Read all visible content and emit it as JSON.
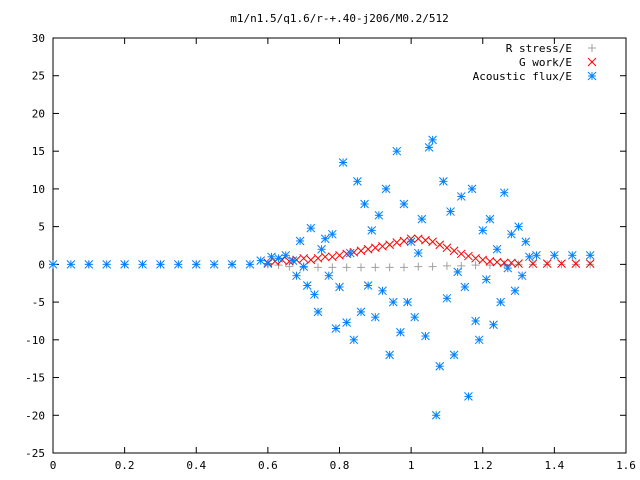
{
  "chart_data": {
    "type": "scatter",
    "title": "m1/n1.5/q1.6/r-+.40-j206/M0.2/512",
    "xlabel": "",
    "ylabel": "",
    "xlim": [
      0,
      1.6
    ],
    "ylim": [
      -25,
      30
    ],
    "x_ticks": [
      "0",
      "0.2",
      "0.4",
      "0.6",
      "0.8",
      "1",
      "1.2",
      "1.4",
      "1.6"
    ],
    "y_ticks": [
      "30",
      "25",
      "20",
      "15",
      "10",
      "5",
      "0",
      "-5",
      "-10",
      "-15",
      "-20",
      "-25"
    ],
    "grid": false,
    "legend_position": "top-right",
    "series": [
      {
        "name": "R stress/E",
        "marker": "+",
        "color": "#a0a0a0",
        "points": [
          [
            0.0,
            0
          ],
          [
            0.1,
            0
          ],
          [
            0.2,
            0
          ],
          [
            0.3,
            0
          ],
          [
            0.4,
            0
          ],
          [
            0.5,
            0
          ],
          [
            0.6,
            0
          ],
          [
            0.63,
            -0.1
          ],
          [
            0.66,
            -0.3
          ],
          [
            0.7,
            -0.4
          ],
          [
            0.74,
            -0.4
          ],
          [
            0.78,
            -0.4
          ],
          [
            0.82,
            -0.4
          ],
          [
            0.86,
            -0.4
          ],
          [
            0.9,
            -0.4
          ],
          [
            0.94,
            -0.4
          ],
          [
            0.98,
            -0.4
          ],
          [
            1.02,
            -0.3
          ],
          [
            1.06,
            -0.3
          ],
          [
            1.1,
            -0.2
          ],
          [
            1.14,
            -0.2
          ],
          [
            1.18,
            -0.1
          ],
          [
            1.22,
            -0.1
          ],
          [
            1.26,
            0
          ],
          [
            1.3,
            0
          ],
          [
            1.34,
            0
          ],
          [
            1.38,
            0
          ],
          [
            1.42,
            0
          ],
          [
            1.46,
            0
          ],
          [
            1.5,
            0
          ]
        ]
      },
      {
        "name": "G work/E",
        "marker": "x",
        "color": "#ff0000",
        "points": [
          [
            0.6,
            0.2
          ],
          [
            0.62,
            0.4
          ],
          [
            0.64,
            0.6
          ],
          [
            0.66,
            0.4
          ],
          [
            0.68,
            0.6
          ],
          [
            0.7,
            0.8
          ],
          [
            0.72,
            0.6
          ],
          [
            0.74,
            0.8
          ],
          [
            0.76,
            1.0
          ],
          [
            0.78,
            1.0
          ],
          [
            0.8,
            1.2
          ],
          [
            0.82,
            1.4
          ],
          [
            0.84,
            1.6
          ],
          [
            0.86,
            1.8
          ],
          [
            0.88,
            2.0
          ],
          [
            0.9,
            2.2
          ],
          [
            0.92,
            2.4
          ],
          [
            0.94,
            2.6
          ],
          [
            0.96,
            2.9
          ],
          [
            0.98,
            3.1
          ],
          [
            1.0,
            3.4
          ],
          [
            1.02,
            3.4
          ],
          [
            1.04,
            3.2
          ],
          [
            1.06,
            3.0
          ],
          [
            1.08,
            2.6
          ],
          [
            1.1,
            2.2
          ],
          [
            1.12,
            1.8
          ],
          [
            1.14,
            1.4
          ],
          [
            1.16,
            1.1
          ],
          [
            1.18,
            0.8
          ],
          [
            1.2,
            0.6
          ],
          [
            1.22,
            0.4
          ],
          [
            1.24,
            0.3
          ],
          [
            1.26,
            0.2
          ],
          [
            1.28,
            0.2
          ],
          [
            1.3,
            0.1
          ],
          [
            1.34,
            0.1
          ],
          [
            1.38,
            0.1
          ],
          [
            1.42,
            0.1
          ],
          [
            1.46,
            0.1
          ],
          [
            1.5,
            0.1
          ]
        ]
      },
      {
        "name": "Acoustic flux/E",
        "marker": "*",
        "color": "#0080ff",
        "points": [
          [
            0.0,
            0
          ],
          [
            0.05,
            0
          ],
          [
            0.1,
            0
          ],
          [
            0.15,
            0
          ],
          [
            0.2,
            0
          ],
          [
            0.25,
            0
          ],
          [
            0.3,
            0
          ],
          [
            0.35,
            0
          ],
          [
            0.4,
            0
          ],
          [
            0.45,
            0
          ],
          [
            0.5,
            0
          ],
          [
            0.55,
            0
          ],
          [
            0.6,
            0.1
          ],
          [
            0.58,
            0.5
          ],
          [
            0.61,
            1.0
          ],
          [
            0.63,
            0.8
          ],
          [
            0.65,
            1.2
          ],
          [
            0.67,
            0.5
          ],
          [
            0.68,
            -1.5
          ],
          [
            0.69,
            3.1
          ],
          [
            0.7,
            -0.3
          ],
          [
            0.71,
            -2.8
          ],
          [
            0.72,
            4.8
          ],
          [
            0.73,
            -4.0
          ],
          [
            0.74,
            -6.3
          ],
          [
            0.75,
            2.0
          ],
          [
            0.76,
            3.4
          ],
          [
            0.77,
            -1.5
          ],
          [
            0.78,
            4.0
          ],
          [
            0.79,
            -8.5
          ],
          [
            0.8,
            -3.0
          ],
          [
            0.81,
            13.5
          ],
          [
            0.82,
            -7.7
          ],
          [
            0.83,
            1.5
          ],
          [
            0.84,
            -10.0
          ],
          [
            0.85,
            11.0
          ],
          [
            0.86,
            -6.3
          ],
          [
            0.87,
            8.0
          ],
          [
            0.88,
            -2.8
          ],
          [
            0.89,
            4.5
          ],
          [
            0.9,
            -7.0
          ],
          [
            0.91,
            6.5
          ],
          [
            0.92,
            -3.5
          ],
          [
            0.93,
            10.0
          ],
          [
            0.94,
            -12.0
          ],
          [
            0.95,
            -5.0
          ],
          [
            0.96,
            15.0
          ],
          [
            0.97,
            -9.0
          ],
          [
            0.98,
            8.0
          ],
          [
            0.99,
            -5.0
          ],
          [
            1.0,
            3.0
          ],
          [
            1.01,
            -7.0
          ],
          [
            1.02,
            1.5
          ],
          [
            1.03,
            6.0
          ],
          [
            1.04,
            -9.5
          ],
          [
            1.05,
            15.5
          ],
          [
            1.06,
            16.5
          ],
          [
            1.07,
            -20.0
          ],
          [
            1.08,
            -13.5
          ],
          [
            1.09,
            11.0
          ],
          [
            1.1,
            -4.5
          ],
          [
            1.11,
            7.0
          ],
          [
            1.12,
            -12.0
          ],
          [
            1.13,
            -1.0
          ],
          [
            1.14,
            9.0
          ],
          [
            1.15,
            -3.0
          ],
          [
            1.16,
            -17.5
          ],
          [
            1.17,
            10.0
          ],
          [
            1.18,
            -7.5
          ],
          [
            1.19,
            -10.0
          ],
          [
            1.2,
            4.5
          ],
          [
            1.21,
            -2.0
          ],
          [
            1.22,
            6.0
          ],
          [
            1.23,
            -8.0
          ],
          [
            1.24,
            2.0
          ],
          [
            1.25,
            -5.0
          ],
          [
            1.26,
            9.5
          ],
          [
            1.27,
            -0.5
          ],
          [
            1.28,
            4.0
          ],
          [
            1.29,
            -3.5
          ],
          [
            1.3,
            5.0
          ],
          [
            1.31,
            -1.5
          ],
          [
            1.32,
            3.0
          ],
          [
            1.33,
            1.0
          ],
          [
            1.35,
            1.2
          ],
          [
            1.4,
            1.2
          ],
          [
            1.45,
            1.2
          ],
          [
            1.5,
            1.2
          ]
        ]
      }
    ]
  }
}
